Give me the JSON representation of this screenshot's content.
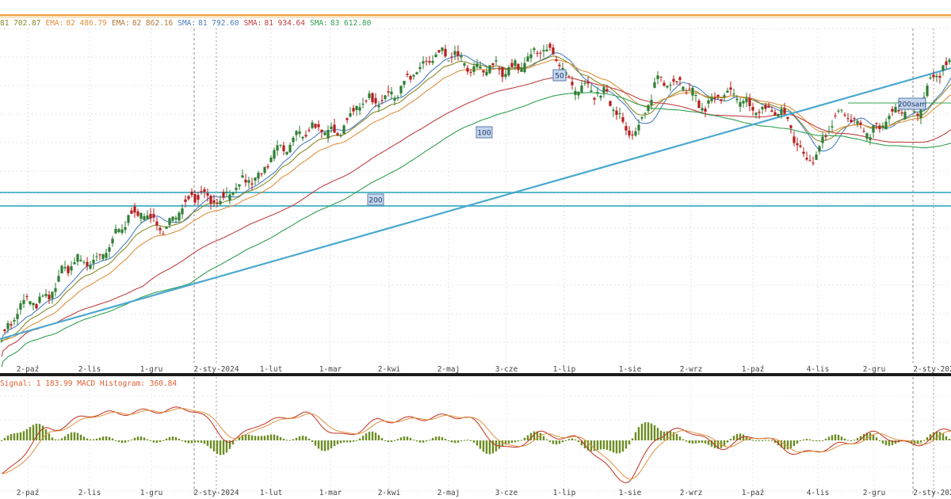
{
  "indicators": [
    {
      "label": "81 702.87",
      "color": "#8a8a2a"
    },
    {
      "label": "EMA:",
      "color": "#e09040"
    },
    {
      "label": "82 486.79",
      "color": "#e09040"
    },
    {
      "label": "EMA:",
      "color": "#b07a3a"
    },
    {
      "label": "82 862.16",
      "color": "#b07a3a"
    },
    {
      "label": "SMA:",
      "color": "#4a7fc0"
    },
    {
      "label": "81 792.60",
      "color": "#4a7fc0"
    },
    {
      "label": "SMA:",
      "color": "#c04040"
    },
    {
      "label": "81 934.64",
      "color": "#c04040"
    },
    {
      "label": "SMA:",
      "color": "#30a050"
    },
    {
      "label": "83 612.80",
      "color": "#30a050"
    }
  ],
  "macd_legend": {
    "signal_label": "Signal: 1 183.99",
    "hist_label": "MACD Histogram: 360.84",
    "color": "#e06030"
  },
  "x_labels": [
    "2-paź",
    "2-lis",
    "1-gru",
    "2-sty-2024",
    "1-lut",
    "1-mar",
    "2-kwi",
    "2-maj",
    "3-cze",
    "1-lip",
    "1-sie",
    "2-wrz",
    "1-paź",
    "4-lis",
    "2-gru",
    "2-sty-202"
  ],
  "tags": {
    "t50": "50",
    "t100": "100",
    "t200": "200",
    "t200sam": "200sam"
  },
  "colors": {
    "up": "#2e7d32",
    "down": "#b71c1c",
    "trendline": "#4aa8d0",
    "hline": "#58b8c8",
    "sma_blue": "#4a7fc0",
    "ema_orange": "#e09040",
    "ema_olive": "#8a8a2a",
    "sma_red": "#c04040",
    "sma_green": "#30a050",
    "macd_line": "#c03020",
    "signal_line": "#e09040",
    "histogram": "#6b8e23"
  },
  "chart_data": {
    "type": "candlestick",
    "x_ticks": [
      "2-paź",
      "2-lis",
      "1-gru",
      "2-sty-2024",
      "1-lut",
      "1-mar",
      "2-kwi",
      "2-maj",
      "3-cze",
      "1-lip",
      "1-sie",
      "2-wrz",
      "1-paź",
      "4-lis",
      "2-gru",
      "2-sty-202"
    ],
    "price_series_anchors": [
      {
        "i": 0,
        "v": 45
      },
      {
        "i": 20,
        "v": 52
      },
      {
        "i": 45,
        "v": 58
      },
      {
        "i": 90,
        "v": 68
      },
      {
        "i": 100,
        "v": 67
      },
      {
        "i": 130,
        "v": 72
      },
      {
        "i": 160,
        "v": 74
      },
      {
        "i": 175,
        "v": 82
      },
      {
        "i": 200,
        "v": 84
      },
      {
        "i": 230,
        "v": 89
      },
      {
        "i": 260,
        "v": 95
      },
      {
        "i": 285,
        "v": 100
      },
      {
        "i": 300,
        "v": 95
      },
      {
        "i": 330,
        "v": 98
      },
      {
        "i": 345,
        "v": 99
      },
      {
        "i": 365,
        "v": 93
      },
      {
        "i": 380,
        "v": 90
      },
      {
        "i": 400,
        "v": 85
      },
      {
        "i": 415,
        "v": 93
      },
      {
        "i": 430,
        "v": 94
      },
      {
        "i": 445,
        "v": 89
      },
      {
        "i": 465,
        "v": 91
      },
      {
        "i": 490,
        "v": 87
      },
      {
        "i": 510,
        "v": 80
      },
      {
        "i": 530,
        "v": 87
      },
      {
        "i": 550,
        "v": 85
      },
      {
        "i": 575,
        "v": 88
      },
      {
        "i": 590,
        "v": 96
      }
    ],
    "macd_anchors": [
      {
        "i": 0,
        "v": -1.5
      },
      {
        "i": 30,
        "v": 0.5
      },
      {
        "i": 60,
        "v": 1.2
      },
      {
        "i": 120,
        "v": 1.4
      },
      {
        "i": 145,
        "v": 0.0
      },
      {
        "i": 165,
        "v": 0.8
      },
      {
        "i": 190,
        "v": 1.2
      },
      {
        "i": 215,
        "v": 0.2
      },
      {
        "i": 240,
        "v": 0.9
      },
      {
        "i": 290,
        "v": 1.1
      },
      {
        "i": 320,
        "v": -0.4
      },
      {
        "i": 340,
        "v": 0.3
      },
      {
        "i": 360,
        "v": 0.1
      },
      {
        "i": 395,
        "v": -1.8
      },
      {
        "i": 415,
        "v": 0.2
      },
      {
        "i": 430,
        "v": 0.5
      },
      {
        "i": 455,
        "v": -0.3
      },
      {
        "i": 475,
        "v": 0.2
      },
      {
        "i": 505,
        "v": -0.6
      },
      {
        "i": 530,
        "v": -0.2
      },
      {
        "i": 550,
        "v": 0.3
      },
      {
        "i": 575,
        "v": -0.2
      },
      {
        "i": 599,
        "v": 0.5
      }
    ],
    "grid": true
  }
}
